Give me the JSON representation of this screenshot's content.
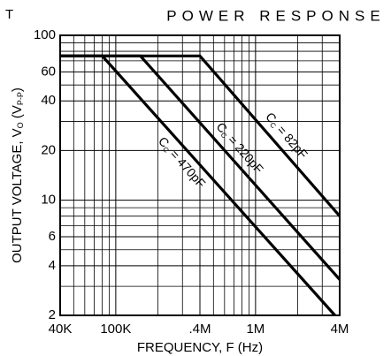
{
  "chart_data": {
    "type": "line",
    "title": "POWER RESPONSE",
    "corner_text": "T",
    "xlabel": "FREQUENCY, F (Hz)",
    "ylabel_parts": [
      "OUTPUT VOLTAGE, V",
      "O",
      " (V",
      "P-P",
      ")"
    ],
    "xscale": "log",
    "yscale": "log",
    "xlim": [
      40000,
      4000000
    ],
    "ylim": [
      2,
      100
    ],
    "xticks": [
      {
        "value": 40000,
        "label": "40K"
      },
      {
        "value": 100000,
        "label": "100K"
      },
      {
        "value": 400000,
        "label": ".4M"
      },
      {
        "value": 1000000,
        "label": "1M"
      },
      {
        "value": 4000000,
        "label": "4M"
      }
    ],
    "yticks": [
      2,
      4,
      6,
      10,
      20,
      40,
      60,
      100
    ],
    "minor_xticks": [
      50000,
      60000,
      70000,
      80000,
      90000,
      200000,
      300000,
      500000,
      600000,
      700000,
      800000,
      900000,
      2000000,
      3000000
    ],
    "minor_yticks": [
      3,
      5,
      7,
      8,
      9,
      30,
      50,
      70,
      80,
      90
    ],
    "grid": true,
    "series": [
      {
        "label_parts": [
          "C",
          "C",
          " = 82pF"
        ],
        "color": "#000000",
        "x": [
          40000,
          400000,
          4000000
        ],
        "values": [
          75,
          75,
          8
        ]
      },
      {
        "label_parts": [
          "C",
          "C",
          " = 220pF"
        ],
        "color": "#000000",
        "x": [
          40000,
          150000,
          4000000
        ],
        "values": [
          75,
          75,
          3.3
        ]
      },
      {
        "label_parts": [
          "C",
          "C",
          " = 470pF"
        ],
        "color": "#000000",
        "x": [
          40000,
          80000,
          3700000
        ],
        "values": [
          75,
          75,
          2
        ]
      }
    ]
  }
}
